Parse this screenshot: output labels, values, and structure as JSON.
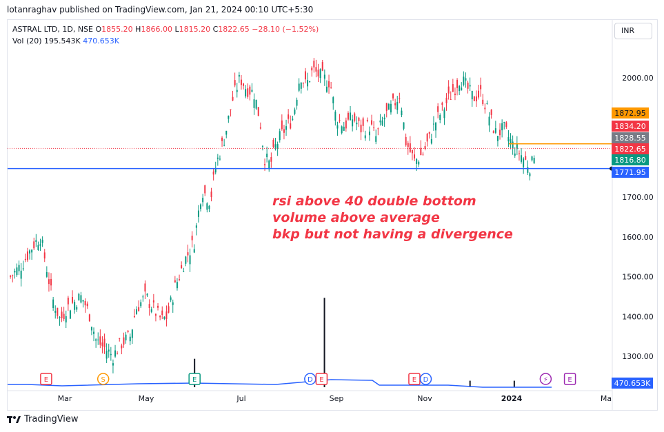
{
  "header": {
    "publisher": "lotanraghav published on TradingView.com, Jan 21, 2024 00:10 UTC+5:30"
  },
  "legend": {
    "symbol": "ASTRAL LTD, 1D, NSE",
    "open_label": "O",
    "open": "1855.20",
    "high_label": "H",
    "high": "1866.00",
    "low_label": "L",
    "low": "1815.20",
    "close_label": "C",
    "close": "1822.65",
    "change": "−28.10 (−1.52%)",
    "volume_label": "Vol (20)",
    "volume": "195.543K",
    "volume_ma": "470.653K"
  },
  "currency": "INR",
  "annotation": {
    "lines": [
      "rsi above 40 double bottom",
      "volume above average",
      "bkp but not having a divergence"
    ]
  },
  "brand": {
    "name": "TradingView"
  },
  "colors": {
    "up": "#089981",
    "down": "#f23645",
    "support": "#2962ff",
    "resistance": "#ff9800",
    "annotation": "#f23645",
    "volume_ma": "#2962ff",
    "close_line": "#f23645"
  },
  "chart_data": {
    "type": "candlestick",
    "symbol": "ASTRAL LTD",
    "interval": "1D",
    "exchange": "NSE",
    "ylim": [
      1245,
      2110
    ],
    "price_ticks": [
      1300,
      1400,
      1500,
      1600,
      1700,
      2000
    ],
    "x_ticks": [
      "Mar",
      "May",
      "Jul",
      "Sep",
      "Nov",
      "2024",
      "Ma"
    ],
    "horizontal_lines": [
      {
        "price": 1771.95,
        "color": "#2962ff"
      },
      {
        "price": 1834.2,
        "color": "#ff9800"
      },
      {
        "price": 1822.65,
        "color": "#f23645",
        "dotted": true
      }
    ],
    "price_labels": [
      {
        "value": "1872.95",
        "price": 1872.95,
        "color": "#ff9800"
      },
      {
        "value": "1834.20",
        "price": 1834.2,
        "color": "#f23645"
      },
      {
        "value": "1828.55",
        "price": 1828.55,
        "color": "#787b86"
      },
      {
        "value": "1822.65",
        "price": 1822.65,
        "color": "#f23645"
      },
      {
        "value": "1816.80",
        "price": 1816.8,
        "color": "#089981"
      },
      {
        "value": "1771.95",
        "price": 1771.95,
        "color": "#2962ff"
      }
    ],
    "volume_ma_label": "470.653K",
    "event_markers": [
      {
        "letter": "E",
        "date": "2023-02-10",
        "color": "#f23645"
      },
      {
        "letter": "S",
        "date": "2023-03-22",
        "color": "#ff9800"
      },
      {
        "letter": "E",
        "date": "2023-05-25",
        "color": "#089981"
      },
      {
        "letter": "D",
        "date": "2023-08-14",
        "color": "#2962ff"
      },
      {
        "letter": "E",
        "date": "2023-08-22",
        "color": "#f23645"
      },
      {
        "letter": "E",
        "date": "2023-10-26",
        "color": "#f23645"
      },
      {
        "letter": "D",
        "date": "2023-11-03",
        "color": "#2962ff"
      },
      {
        "letter": "⚡",
        "date": "2024-01-26",
        "color": "#9c27b0"
      },
      {
        "letter": "E",
        "date": "2024-02-12",
        "color": "#9c27b0"
      }
    ],
    "series": [
      {
        "date": "2023-01-16",
        "close": 1500
      },
      {
        "date": "2023-01-24",
        "close": 1530
      },
      {
        "date": "2023-02-01",
        "close": 1580
      },
      {
        "date": "2023-02-06",
        "close": 1600
      },
      {
        "date": "2023-02-10",
        "close": 1530
      },
      {
        "date": "2023-02-14",
        "close": 1450
      },
      {
        "date": "2023-02-20",
        "close": 1390
      },
      {
        "date": "2023-02-24",
        "close": 1420
      },
      {
        "date": "2023-03-03",
        "close": 1440
      },
      {
        "date": "2023-03-07",
        "close": 1450
      },
      {
        "date": "2023-03-13",
        "close": 1400
      },
      {
        "date": "2023-03-17",
        "close": 1340
      },
      {
        "date": "2023-03-23",
        "close": 1320
      },
      {
        "date": "2023-03-29",
        "close": 1300
      },
      {
        "date": "2023-04-03",
        "close": 1330
      },
      {
        "date": "2023-04-10",
        "close": 1350
      },
      {
        "date": "2023-04-14",
        "close": 1420
      },
      {
        "date": "2023-04-21",
        "close": 1450
      },
      {
        "date": "2023-04-26",
        "close": 1420
      },
      {
        "date": "2023-05-02",
        "close": 1390
      },
      {
        "date": "2023-05-06",
        "close": 1400
      },
      {
        "date": "2023-05-11",
        "close": 1470
      },
      {
        "date": "2023-05-18",
        "close": 1540
      },
      {
        "date": "2023-05-25",
        "close": 1590
      },
      {
        "date": "2023-05-30",
        "close": 1720
      },
      {
        "date": "2023-06-05",
        "close": 1690
      },
      {
        "date": "2023-06-09",
        "close": 1780
      },
      {
        "date": "2023-06-15",
        "close": 1850
      },
      {
        "date": "2023-06-21",
        "close": 1950
      },
      {
        "date": "2023-06-26",
        "close": 2000
      },
      {
        "date": "2023-06-30",
        "close": 1975
      },
      {
        "date": "2023-07-06",
        "close": 1960
      },
      {
        "date": "2023-07-10",
        "close": 1890
      },
      {
        "date": "2023-07-13",
        "close": 1800
      },
      {
        "date": "2023-07-17",
        "close": 1780
      },
      {
        "date": "2023-07-21",
        "close": 1830
      },
      {
        "date": "2023-07-27",
        "close": 1870
      },
      {
        "date": "2023-08-02",
        "close": 1900
      },
      {
        "date": "2023-08-07",
        "close": 2010
      },
      {
        "date": "2023-08-11",
        "close": 1980
      },
      {
        "date": "2023-08-16",
        "close": 2020
      },
      {
        "date": "2023-08-22",
        "close": 2000
      },
      {
        "date": "2023-08-28",
        "close": 1990
      },
      {
        "date": "2023-09-01",
        "close": 1900
      },
      {
        "date": "2023-09-07",
        "close": 1880
      },
      {
        "date": "2023-09-13",
        "close": 1900
      },
      {
        "date": "2023-09-19",
        "close": 1870
      },
      {
        "date": "2023-09-25",
        "close": 1880
      },
      {
        "date": "2023-09-29",
        "close": 1850
      },
      {
        "date": "2023-10-05",
        "close": 1900
      },
      {
        "date": "2023-10-11",
        "close": 1930
      },
      {
        "date": "2023-10-16",
        "close": 1960
      },
      {
        "date": "2023-10-20",
        "close": 1840
      },
      {
        "date": "2023-10-26",
        "close": 1790
      },
      {
        "date": "2023-11-01",
        "close": 1810
      },
      {
        "date": "2023-11-06",
        "close": 1850
      },
      {
        "date": "2023-11-10",
        "close": 1890
      },
      {
        "date": "2023-11-15",
        "close": 1920
      },
      {
        "date": "2023-11-21",
        "close": 1960
      },
      {
        "date": "2023-11-27",
        "close": 2000
      },
      {
        "date": "2023-12-01",
        "close": 1980
      },
      {
        "date": "2023-12-06",
        "close": 1950
      },
      {
        "date": "2023-12-12",
        "close": 1960
      },
      {
        "date": "2023-12-18",
        "close": 1900
      },
      {
        "date": "2023-12-22",
        "close": 1860
      },
      {
        "date": "2023-12-28",
        "close": 1870
      },
      {
        "date": "2024-01-03",
        "close": 1830
      },
      {
        "date": "2024-01-08",
        "close": 1810
      },
      {
        "date": "2024-01-12",
        "close": 1790
      },
      {
        "date": "2024-01-16",
        "close": 1775
      },
      {
        "date": "2024-01-18",
        "close": 1816
      },
      {
        "date": "2024-01-19",
        "close": 1822.65
      }
    ],
    "volume": [
      {
        "date": "2023-05-25",
        "value": 3.5
      },
      {
        "date": "2023-08-24",
        "value": 11
      },
      {
        "date": "2023-12-04",
        "value": 0.8
      },
      {
        "date": "2024-01-04",
        "value": 0.8
      }
    ]
  }
}
